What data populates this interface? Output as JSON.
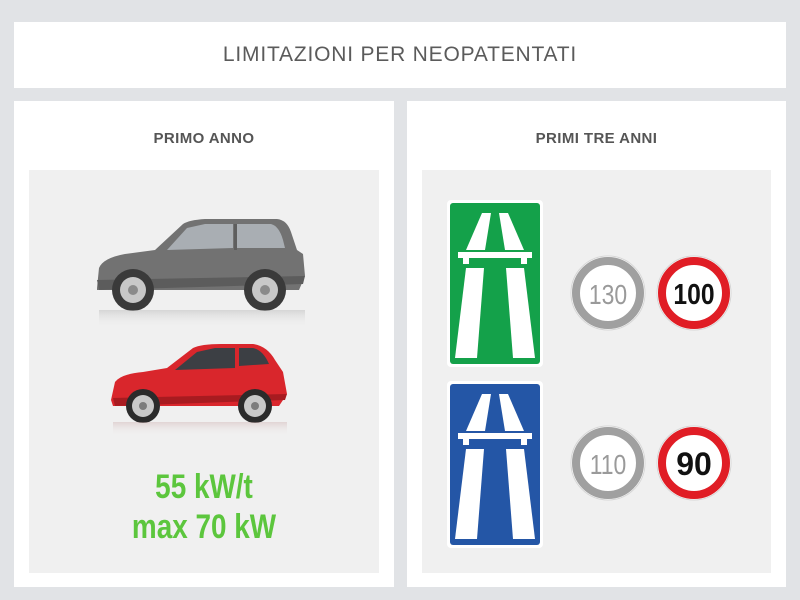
{
  "header": {
    "title": "LIMITAZIONI PER NEOPATENTATI"
  },
  "primo_anno": {
    "title": "PRIMO ANNO",
    "power_line1": "55 kW/t",
    "power_line2": "max 70 kW",
    "colors": {
      "power_text": "#5cc63d",
      "red_car": "#d9262c",
      "gray_car": "#7a7a7a"
    }
  },
  "primi_tre_anni": {
    "title": "PRIMI TRE ANNI",
    "autostrada": {
      "sign_color": "#14a14a",
      "standard_limit": "130",
      "new_driver_limit": "100"
    },
    "superstrada": {
      "sign_color": "#2456a6",
      "standard_limit": "110",
      "new_driver_limit": "90"
    }
  }
}
